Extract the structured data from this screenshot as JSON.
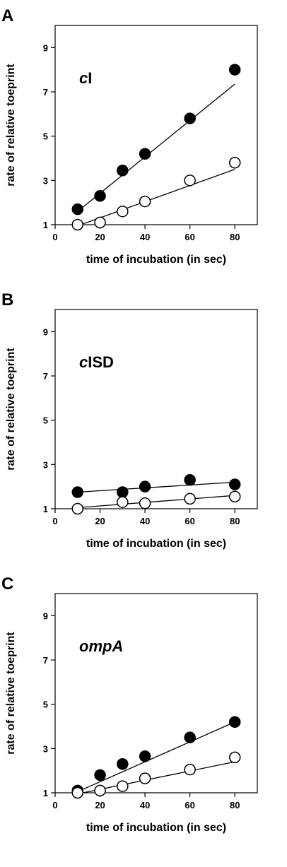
{
  "chart_data": [
    {
      "type": "scatter",
      "panel": "A",
      "label_parts": [
        {
          "text": "c",
          "italic": true
        },
        {
          "text": "I",
          "italic": false
        }
      ],
      "xlabel": "time of incubation (in sec)",
      "ylabel": "rate of relative toeprint",
      "xlim": [
        0,
        90
      ],
      "ylim": [
        1,
        10
      ],
      "xticks": [
        0,
        20,
        40,
        60,
        80
      ],
      "yticks": [
        1,
        3,
        5,
        7,
        9
      ],
      "series": [
        {
          "marker": "filled",
          "x": [
            10,
            20,
            30,
            40,
            60,
            80
          ],
          "y": [
            1.7,
            2.3,
            3.45,
            4.2,
            5.8,
            8.0
          ],
          "fit": [
            [
              10,
              1.6
            ],
            [
              80,
              7.35
            ]
          ]
        },
        {
          "marker": "open",
          "x": [
            10,
            20,
            30,
            40,
            60,
            80
          ],
          "y": [
            1.0,
            1.1,
            1.6,
            2.05,
            3.0,
            3.8
          ],
          "fit": [
            [
              10,
              0.95
            ],
            [
              80,
              3.5
            ]
          ]
        }
      ]
    },
    {
      "type": "scatter",
      "panel": "B",
      "label_parts": [
        {
          "text": "c",
          "italic": true
        },
        {
          "text": "ISD",
          "italic": false
        }
      ],
      "xlabel": "time of incubation (in sec)",
      "ylabel": "rate of relative toeprint",
      "xlim": [
        0,
        90
      ],
      "ylim": [
        1,
        10
      ],
      "xticks": [
        0,
        20,
        40,
        60,
        80
      ],
      "yticks": [
        1,
        3,
        5,
        7,
        9
      ],
      "series": [
        {
          "marker": "filled",
          "x": [
            10,
            30,
            40,
            60,
            80
          ],
          "y": [
            1.75,
            1.75,
            2.0,
            2.3,
            2.1
          ],
          "fit": [
            [
              10,
              1.75
            ],
            [
              80,
              2.2
            ]
          ]
        },
        {
          "marker": "open",
          "x": [
            10,
            30,
            40,
            60,
            80
          ],
          "y": [
            1.0,
            1.3,
            1.25,
            1.45,
            1.55
          ],
          "fit": [
            [
              10,
              1.05
            ],
            [
              80,
              1.6
            ]
          ]
        }
      ]
    },
    {
      "type": "scatter",
      "panel": "C",
      "label_parts": [
        {
          "text": "ompA",
          "italic": true
        }
      ],
      "xlabel": "time of incubation (in sec)",
      "ylabel": "rate of relative toeprint",
      "xlim": [
        0,
        90
      ],
      "ylim": [
        1,
        10
      ],
      "xticks": [
        0,
        20,
        40,
        60,
        80
      ],
      "yticks": [
        1,
        3,
        5,
        7,
        9
      ],
      "series": [
        {
          "marker": "filled",
          "x": [
            10,
            20,
            30,
            40,
            60,
            80
          ],
          "y": [
            1.1,
            1.8,
            2.3,
            2.65,
            3.5,
            4.2
          ],
          "fit": [
            [
              10,
              1.05
            ],
            [
              80,
              4.2
            ]
          ]
        },
        {
          "marker": "open",
          "x": [
            10,
            20,
            30,
            40,
            60,
            80
          ],
          "y": [
            1.0,
            1.1,
            1.3,
            1.65,
            2.05,
            2.6
          ],
          "fit": [
            [
              10,
              0.95
            ],
            [
              80,
              2.4
            ]
          ]
        }
      ]
    }
  ]
}
